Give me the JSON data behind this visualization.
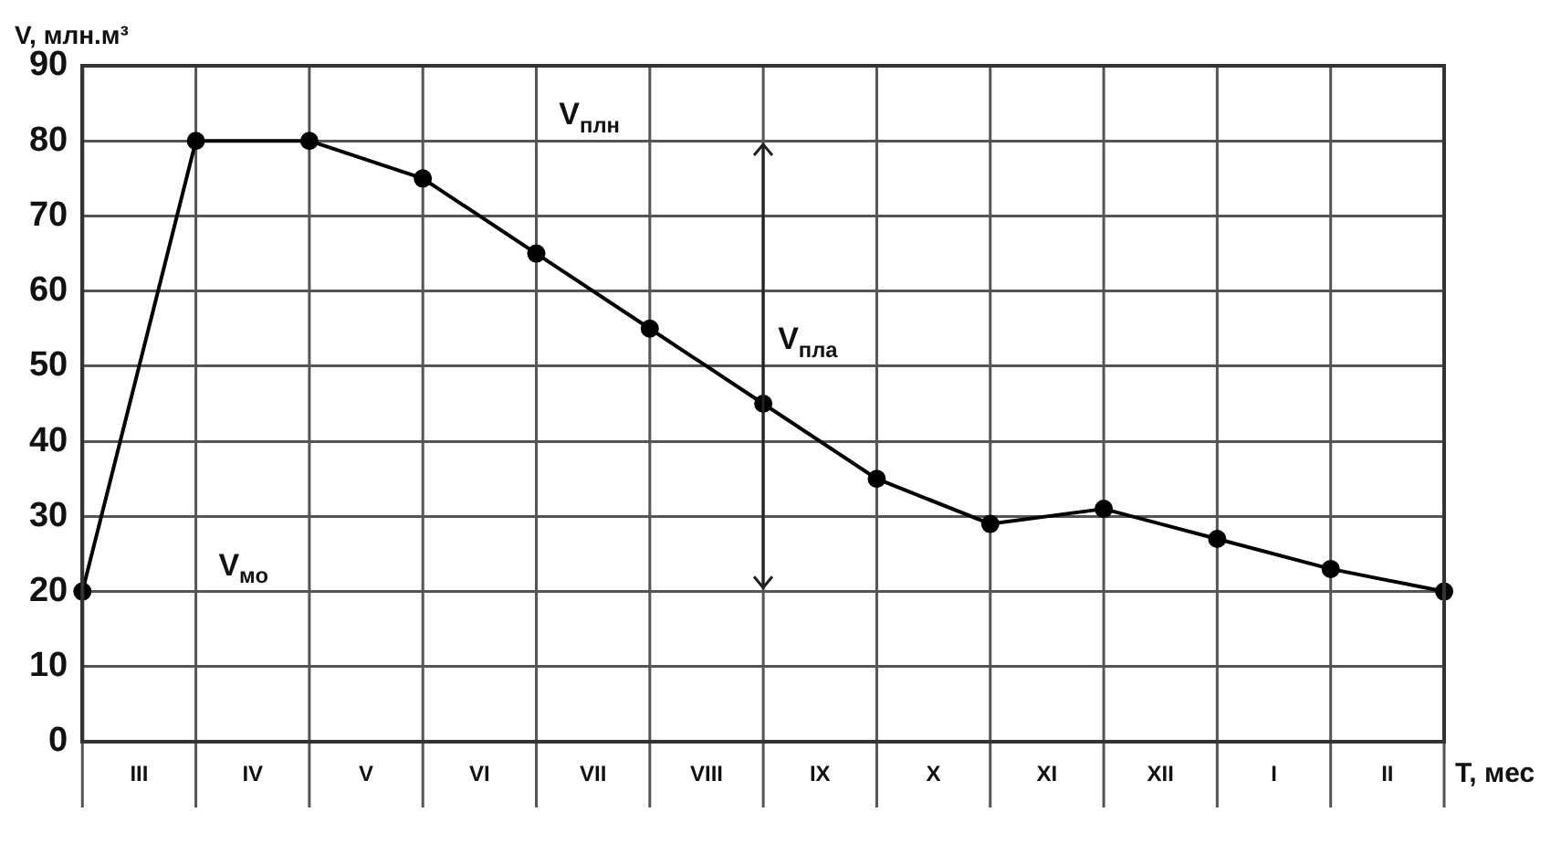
{
  "chart_data": {
    "type": "line",
    "ylabel": "V, млн.м³",
    "xlabel": "Т, мес",
    "categories": [
      null,
      null,
      null,
      null,
      null,
      null,
      null,
      null,
      null,
      null,
      null,
      null,
      null
    ],
    "series": [
      {
        "color": "#000000",
        "values": [
          20,
          80,
          80,
          75,
          65,
          55,
          45,
          35,
          29,
          31,
          27,
          23,
          20
        ]
      }
    ],
    "ylim": [
      0,
      90
    ],
    "yticks": [
      0,
      10,
      20,
      30,
      40,
      50,
      60,
      70,
      80,
      90
    ],
    "annotations": [
      "V$_{плн}$",
      "V$_{мо}$",
      "V$_{пла}$",
      "III",
      "IV",
      "V",
      "VI",
      "VII",
      "VIII",
      "IX",
      "X",
      "XI",
      "XII",
      "I",
      "II"
    ],
    "tick_labels": "y",
    "grid": true,
    "legend": false,
    "marker": "circle",
    "line_style": "solid"
  }
}
